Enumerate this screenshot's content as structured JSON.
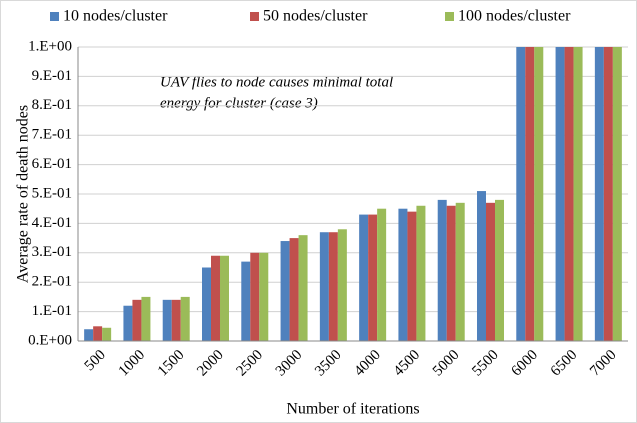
{
  "chart_data": {
    "type": "bar",
    "annotation": [
      "UAV flies to node causes minimal total",
      "energy for cluster (case 3)"
    ],
    "x_label": "Number of iterations",
    "y_label": "Average rate of death nodes",
    "categories": [
      "500",
      "1000",
      "1500",
      "2000",
      "2500",
      "3000",
      "3500",
      "4000",
      "4500",
      "5000",
      "5500",
      "6000",
      "6500",
      "7000"
    ],
    "series": [
      {
        "name": "10 nodes/cluster",
        "color": "#4f81bd",
        "values": [
          0.04,
          0.12,
          0.14,
          0.25,
          0.27,
          0.34,
          0.37,
          0.43,
          0.45,
          0.48,
          0.51,
          1,
          1,
          1
        ]
      },
      {
        "name": "50 nodes/cluster",
        "color": "#c0504d",
        "values": [
          0.05,
          0.14,
          0.14,
          0.29,
          0.3,
          0.35,
          0.37,
          0.43,
          0.44,
          0.46,
          0.47,
          1,
          1,
          1
        ]
      },
      {
        "name": "100 nodes/cluster",
        "color": "#9bbb59",
        "values": [
          0.045,
          0.15,
          0.15,
          0.29,
          0.3,
          0.36,
          0.38,
          0.45,
          0.46,
          0.47,
          0.48,
          1,
          1,
          1
        ]
      }
    ],
    "ylim": [
      0,
      1
    ],
    "yticks": [
      {
        "value": 0,
        "label": "0.E+00"
      },
      {
        "value": 0.1,
        "label": "1.E-01"
      },
      {
        "value": 0.2,
        "label": "2.E-01"
      },
      {
        "value": 0.3,
        "label": "3.E-01"
      },
      {
        "value": 0.4,
        "label": "4.E-01"
      },
      {
        "value": 0.5,
        "label": "5.E-01"
      },
      {
        "value": 0.6,
        "label": "6.E-01"
      },
      {
        "value": 0.7,
        "label": "7.E-01"
      },
      {
        "value": 0.8,
        "label": "8.E-01"
      },
      {
        "value": 0.9,
        "label": "9.E-01"
      },
      {
        "value": 1,
        "label": "1.E+00"
      }
    ],
    "grid": true,
    "legend": "top"
  }
}
